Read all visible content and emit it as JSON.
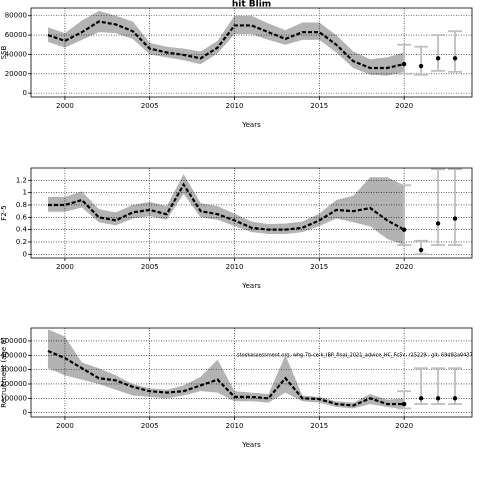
{
  "chart_data": [
    {
      "type": "line",
      "title": "hit Blim",
      "xlabel": "Years",
      "ylabel": "SSB",
      "x": [
        1999,
        2000,
        2001,
        2002,
        2003,
        2004,
        2005,
        2006,
        2007,
        2008,
        2009,
        2010,
        2011,
        2012,
        2013,
        2014,
        2015,
        2016,
        2017,
        2018,
        2019,
        2020
      ],
      "values": [
        60000,
        54000,
        63000,
        74000,
        71000,
        64000,
        46000,
        42000,
        39500,
        36000,
        47000,
        70000,
        70000,
        63000,
        56000,
        63000,
        63000,
        50000,
        33000,
        26000,
        26000,
        30000
      ],
      "upper": [
        68000,
        62000,
        75000,
        85000,
        80000,
        74000,
        52000,
        48000,
        46000,
        43000,
        54000,
        80000,
        80000,
        72000,
        65000,
        73000,
        73000,
        60000,
        43000,
        35000,
        37000,
        42000
      ],
      "lower": [
        53000,
        47000,
        55000,
        63000,
        62000,
        56000,
        40000,
        37000,
        34000,
        30000,
        41000,
        61000,
        61000,
        55000,
        50000,
        55000,
        55000,
        42000,
        26000,
        19000,
        18000,
        22000
      ],
      "proj_x": [
        2020,
        2021,
        2022,
        2023
      ],
      "proj_values": [
        30000,
        28000,
        36000,
        36000
      ],
      "proj_lower": [
        20000,
        19000,
        23000,
        22000
      ],
      "proj_upper": [
        50000,
        48000,
        60000,
        64000
      ],
      "xlim": [
        1998,
        2024
      ],
      "xticks": [
        2000,
        2005,
        2010,
        2015,
        2020
      ],
      "ylim": [
        -4000,
        88000
      ],
      "yticks": [
        0,
        20000,
        40000,
        60000,
        80000
      ],
      "color": "#000000",
      "band_color": "#b3b3b3",
      "bar_color": "#bfbfbf",
      "grid": true
    },
    {
      "type": "line",
      "xlabel": "Years",
      "ylabel": "F2-5",
      "x": [
        1999,
        2000,
        2001,
        2002,
        2003,
        2004,
        2005,
        2006,
        2007,
        2008,
        2009,
        2010,
        2011,
        2012,
        2013,
        2014,
        2015,
        2016,
        2017,
        2018,
        2019,
        2020
      ],
      "values": [
        0.8,
        0.8,
        0.88,
        0.6,
        0.55,
        0.68,
        0.72,
        0.65,
        1.13,
        0.7,
        0.65,
        0.55,
        0.43,
        0.4,
        0.4,
        0.43,
        0.55,
        0.72,
        0.7,
        0.75,
        0.55,
        0.4
      ],
      "upper": [
        0.93,
        0.93,
        1.02,
        0.73,
        0.68,
        0.8,
        0.85,
        0.78,
        1.3,
        0.83,
        0.78,
        0.66,
        0.53,
        0.49,
        0.5,
        0.53,
        0.66,
        0.88,
        0.95,
        1.25,
        1.25,
        1.12
      ],
      "lower": [
        0.69,
        0.69,
        0.76,
        0.52,
        0.47,
        0.58,
        0.62,
        0.56,
        0.98,
        0.6,
        0.56,
        0.46,
        0.36,
        0.33,
        0.33,
        0.36,
        0.46,
        0.58,
        0.52,
        0.45,
        0.25,
        0.15
      ],
      "proj_x": [
        2020,
        2021,
        2022,
        2023
      ],
      "proj_values": [
        0.4,
        0.07,
        0.5,
        0.58
      ],
      "proj_lower": [
        0.15,
        0.0,
        0.15,
        0.15
      ],
      "proj_upper": [
        1.12,
        0.22,
        1.38,
        1.38
      ],
      "xlim": [
        1998,
        2024
      ],
      "xticks": [
        2000,
        2005,
        2010,
        2015,
        2020
      ],
      "ylim": [
        -0.06,
        1.4
      ],
      "yticks": [
        0,
        0.2,
        0.4,
        0.6,
        0.8,
        1,
        1.2
      ],
      "color": "#000000",
      "band_color": "#b3b3b3",
      "bar_color": "#bfbfbf",
      "grid": true
    },
    {
      "type": "line",
      "xlabel": "Years",
      "ylabel": "Recruitment (age 0)",
      "annotation": "stockassessment.org, whg.7b-ce-k_IBP_final_2021_advice_HC_Fc5v, r15229 , git: 69d92a0437",
      "x": [
        1999,
        2000,
        2001,
        2002,
        2003,
        2004,
        2005,
        2006,
        2007,
        2008,
        2009,
        2010,
        2011,
        2012,
        2013,
        2014,
        2015,
        2016,
        2017,
        2018,
        2019,
        2020
      ],
      "values": [
        430000,
        380000,
        310000,
        240000,
        225000,
        180000,
        150000,
        140000,
        150000,
        190000,
        230000,
        110000,
        110000,
        100000,
        240000,
        100000,
        95000,
        60000,
        50000,
        100000,
        60000,
        60000
      ],
      "upper": [
        580000,
        530000,
        350000,
        310000,
        260000,
        200000,
        170000,
        160000,
        190000,
        250000,
        370000,
        150000,
        140000,
        130000,
        400000,
        120000,
        110000,
        80000,
        70000,
        130000,
        90000,
        100000
      ],
      "lower": [
        310000,
        260000,
        230000,
        200000,
        160000,
        120000,
        110000,
        100000,
        120000,
        150000,
        140000,
        80000,
        80000,
        70000,
        140000,
        80000,
        70000,
        40000,
        30000,
        60000,
        40000,
        25000
      ],
      "proj_x": [
        2020,
        2021,
        2022,
        2023
      ],
      "proj_values": [
        60000,
        100000,
        100000,
        100000
      ],
      "proj_lower": [
        30000,
        60000,
        60000,
        60000
      ],
      "proj_upper": [
        150000,
        310000,
        310000,
        310000
      ],
      "xlim": [
        1998,
        2024
      ],
      "xticks": [
        2000,
        2005,
        2010,
        2015,
        2020
      ],
      "ylim": [
        -30000,
        590000
      ],
      "yticks": [
        0,
        100000,
        200000,
        300000,
        400000,
        500000
      ],
      "color": "#000000",
      "band_color": "#b3b3b3",
      "bar_color": "#bfbfbf",
      "grid": true
    }
  ]
}
